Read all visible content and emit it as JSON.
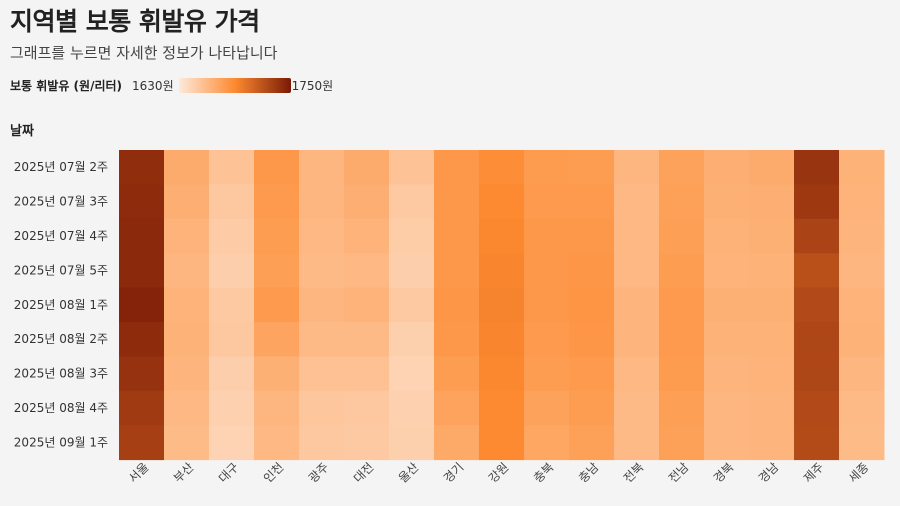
{
  "header": {
    "title": "지역별 보통 휘발유 가격",
    "subtitle": "그래프를 누르면 자세한 정보가 나타납니다"
  },
  "legend": {
    "label": "보통 휘발유 (원/리터)",
    "min_label": "1630원",
    "max_label": "1750원",
    "color_low": "#fde9db",
    "color_mid": "#fd8a30",
    "color_high": "#7a1a06"
  },
  "chart_data": {
    "type": "heatmap",
    "title": "지역별 보통 휘발유 가격",
    "subtitle": "그래프를 누르면 자세한 정보가 나타납니다",
    "ylabel": "날짜",
    "value_label": "보통 휘발유 (원/리터)",
    "value_range": [
      1630,
      1750
    ],
    "x_categories": [
      "서울",
      "부산",
      "대구",
      "인천",
      "광주",
      "대전",
      "울산",
      "경기",
      "강원",
      "충북",
      "충남",
      "전북",
      "전남",
      "경북",
      "경남",
      "제주",
      "세종"
    ],
    "y_categories": [
      "2025년 07월 2주",
      "2025년 07월 3주",
      "2025년 07월 4주",
      "2025년 07월 5주",
      "2025년 08월 1주",
      "2025년 08월 2주",
      "2025년 08월 3주",
      "2025년 08월 4주",
      "2025년 09월 1주"
    ],
    "values": [
      [
        1740,
        1669,
        1654,
        1681,
        1662,
        1669,
        1654,
        1681,
        1688,
        1679,
        1678,
        1662,
        1675,
        1667,
        1669,
        1736,
        1665
      ],
      [
        1741,
        1667,
        1651,
        1680,
        1662,
        1667,
        1650,
        1681,
        1690,
        1680,
        1680,
        1661,
        1676,
        1666,
        1667,
        1734,
        1664
      ],
      [
        1742,
        1664,
        1649,
        1678,
        1661,
        1664,
        1648,
        1681,
        1691,
        1681,
        1681,
        1661,
        1677,
        1665,
        1666,
        1728,
        1663
      ],
      [
        1742,
        1662,
        1647,
        1677,
        1660,
        1661,
        1647,
        1681,
        1692,
        1681,
        1682,
        1661,
        1678,
        1664,
        1665,
        1721,
        1662
      ],
      [
        1745,
        1664,
        1650,
        1680,
        1662,
        1664,
        1650,
        1682,
        1693,
        1681,
        1683,
        1663,
        1680,
        1666,
        1666,
        1725,
        1664
      ],
      [
        1741,
        1665,
        1651,
        1673,
        1660,
        1660,
        1646,
        1681,
        1692,
        1680,
        1682,
        1663,
        1680,
        1665,
        1665,
        1726,
        1665
      ],
      [
        1737,
        1663,
        1647,
        1666,
        1655,
        1655,
        1644,
        1678,
        1691,
        1678,
        1680,
        1661,
        1679,
        1663,
        1664,
        1726,
        1662
      ],
      [
        1733,
        1661,
        1645,
        1662,
        1652,
        1651,
        1645,
        1674,
        1690,
        1675,
        1678,
        1660,
        1677,
        1662,
        1663,
        1725,
        1660
      ],
      [
        1730,
        1659,
        1644,
        1661,
        1651,
        1650,
        1646,
        1670,
        1690,
        1672,
        1676,
        1660,
        1676,
        1662,
        1663,
        1724,
        1659
      ]
    ]
  }
}
